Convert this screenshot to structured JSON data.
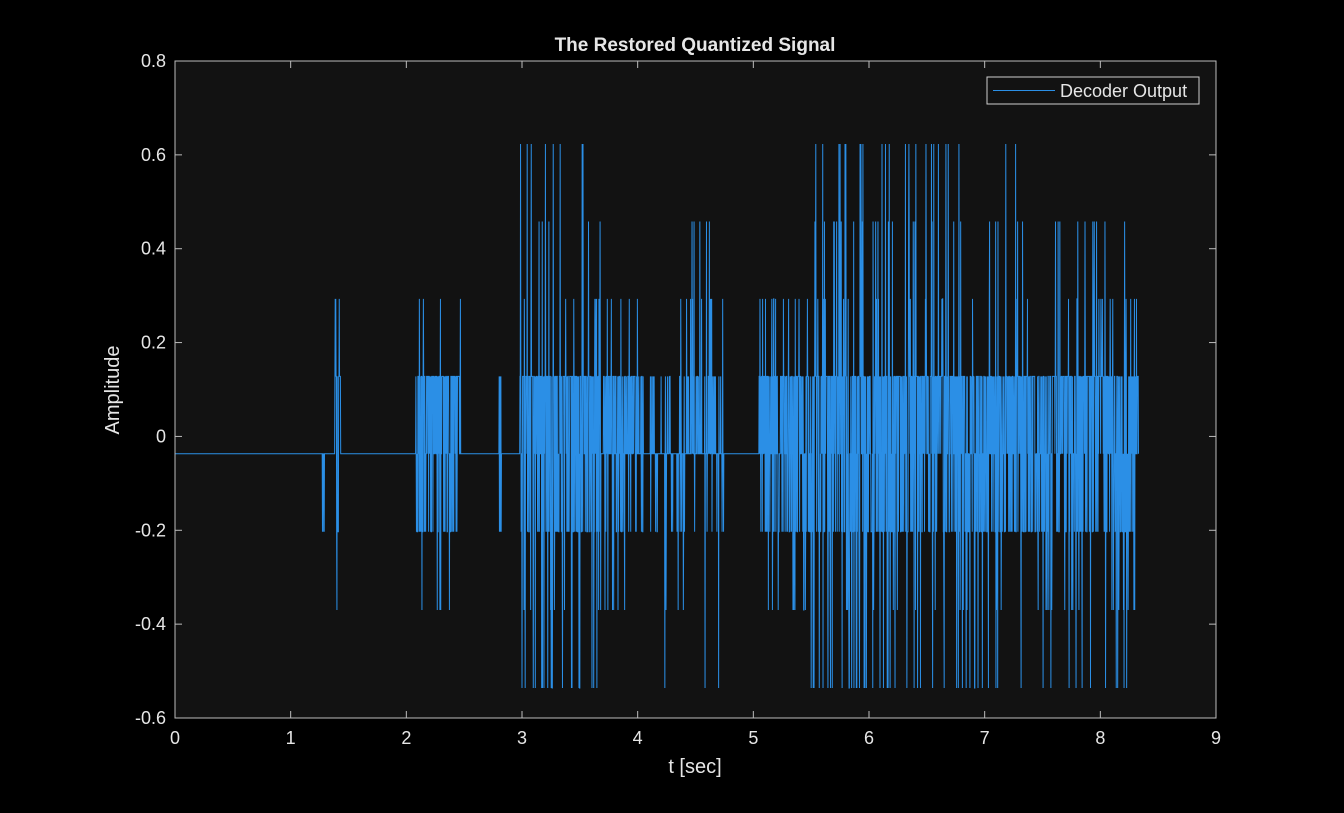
{
  "chart_data": {
    "type": "line",
    "title": "The Restored Quantized Signal",
    "xlabel": "t [sec]",
    "ylabel": "Amplitude",
    "xlim": [
      0,
      9
    ],
    "ylim": [
      -0.6,
      0.8
    ],
    "xticks": [
      0,
      1,
      2,
      3,
      4,
      5,
      6,
      7,
      8,
      9
    ],
    "yticks": [
      -0.6,
      -0.4,
      -0.2,
      0,
      0.2,
      0.4,
      0.6,
      0.8
    ],
    "xtick_labels": [
      "0",
      "1",
      "2",
      "3",
      "4",
      "5",
      "6",
      "7",
      "8",
      "9"
    ],
    "ytick_labels": [
      "-0.6",
      "-0.4",
      "-0.2",
      "0",
      "0.2",
      "0.4",
      "0.6",
      "0.8"
    ],
    "grid": false,
    "legend_position": "top-right",
    "quantization_levels": [
      -0.536,
      -0.37,
      -0.203,
      -0.037,
      0.128,
      0.293,
      0.458,
      0.623
    ],
    "baseline": -0.037,
    "duration": 8.33,
    "series": [
      {
        "name": "Decoder Output",
        "color": "#2b8fe6",
        "bursts": [
          {
            "start": 1.27,
            "end": 1.29,
            "density": 0.6,
            "amp": 1
          },
          {
            "start": 1.38,
            "end": 1.43,
            "density": 0.9,
            "amp": 2
          },
          {
            "start": 2.08,
            "end": 2.47,
            "density": 0.8,
            "amp": 2
          },
          {
            "start": 2.8,
            "end": 2.82,
            "density": 0.8,
            "amp": 1
          },
          {
            "start": 2.98,
            "end": 3.68,
            "density": 0.85,
            "amp": 4
          },
          {
            "start": 3.7,
            "end": 4.05,
            "density": 0.55,
            "amp": 2
          },
          {
            "start": 4.1,
            "end": 4.75,
            "density": 0.3,
            "amp": 3
          },
          {
            "start": 5.05,
            "end": 5.5,
            "density": 0.7,
            "amp": 2
          },
          {
            "start": 5.5,
            "end": 6.25,
            "density": 0.85,
            "amp": 4
          },
          {
            "start": 6.25,
            "end": 7.35,
            "density": 0.8,
            "amp": 4
          },
          {
            "start": 7.35,
            "end": 8.33,
            "density": 0.75,
            "amp": 3
          }
        ],
        "peaks": [
          {
            "t": 3.33,
            "v": 0.623
          },
          {
            "t": 3.52,
            "v": 0.623
          },
          {
            "t": 5.93,
            "v": 0.623
          },
          {
            "t": 6.6,
            "v": 0.623
          },
          {
            "t": 3.35,
            "v": -0.536
          },
          {
            "t": 3.5,
            "v": -0.536
          },
          {
            "t": 5.85,
            "v": -0.536
          },
          {
            "t": 6.55,
            "v": -0.536
          },
          {
            "t": 1.42,
            "v": 0.293
          },
          {
            "t": 1.4,
            "v": -0.37
          },
          {
            "t": 3.0,
            "v": -0.536
          },
          {
            "t": 8.15,
            "v": -0.536
          }
        ]
      }
    ]
  }
}
